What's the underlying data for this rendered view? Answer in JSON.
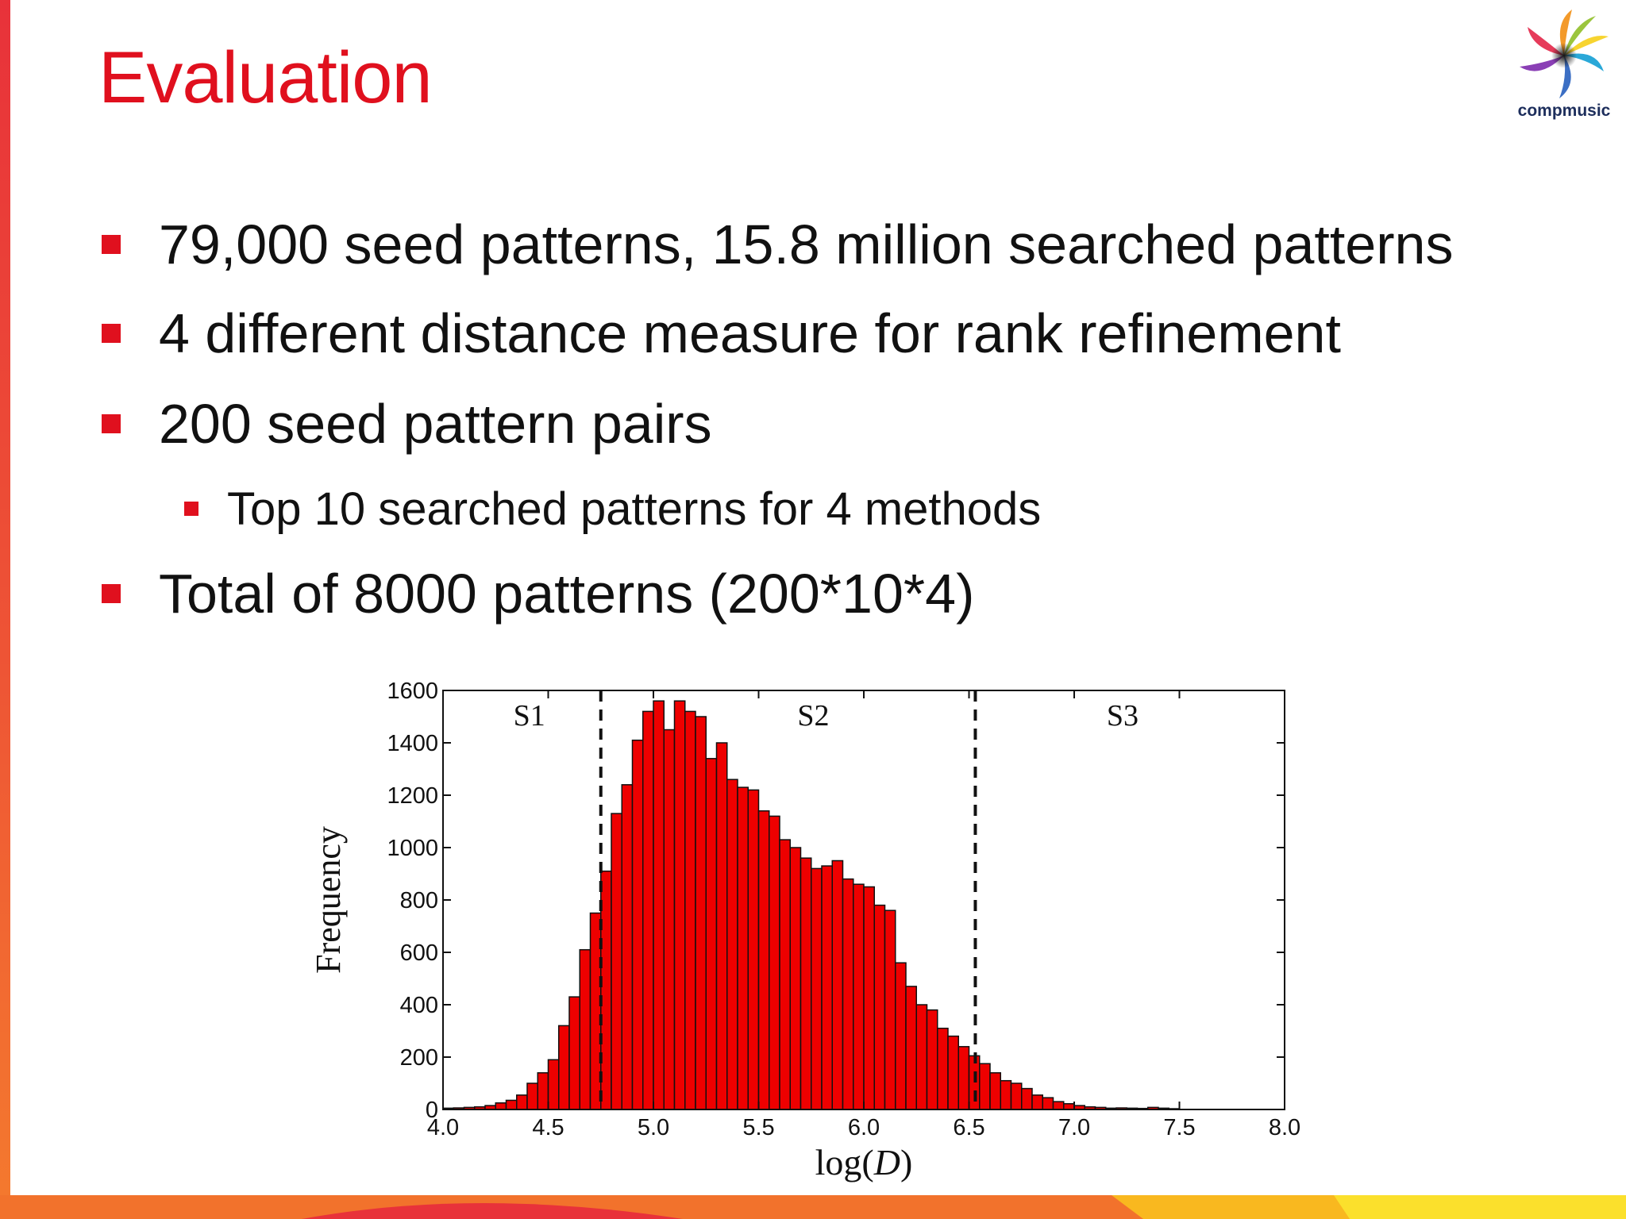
{
  "slide": {
    "title": "Evaluation",
    "logo_text": "compmusic",
    "bullets": [
      {
        "text": "79,000 seed patterns, 15.8 million searched patterns"
      },
      {
        "text": "4 different distance measure for rank refinement"
      },
      {
        "text": "200 seed pattern pairs",
        "sub": [
          "Top 10 searched patterns for 4 methods"
        ]
      },
      {
        "text": "Total of 8000 patterns (200*10*4)"
      }
    ],
    "colors": {
      "accent": "#e0101e",
      "bar_fill": "#ee0000",
      "text": "#111111"
    }
  },
  "chart_data": {
    "type": "bar",
    "histogram": true,
    "xlabel": "log(D)",
    "ylabel": "Frequency",
    "xlim": [
      4.0,
      8.0
    ],
    "ylim": [
      0,
      1600
    ],
    "xticks": [
      "4.0",
      "4.5",
      "5.0",
      "5.5",
      "6.0",
      "6.5",
      "7.0",
      "7.5",
      "8.0"
    ],
    "yticks": [
      "0",
      "200",
      "400",
      "600",
      "800",
      "1000",
      "1200",
      "1400",
      "1600"
    ],
    "bin_start": 4.0,
    "bin_width": 0.05,
    "values": [
      5,
      6,
      8,
      10,
      15,
      25,
      35,
      55,
      100,
      140,
      190,
      320,
      430,
      610,
      750,
      910,
      1130,
      1240,
      1410,
      1520,
      1560,
      1450,
      1560,
      1520,
      1500,
      1340,
      1400,
      1260,
      1230,
      1220,
      1140,
      1120,
      1030,
      1000,
      960,
      920,
      930,
      950,
      880,
      860,
      850,
      780,
      760,
      560,
      470,
      400,
      380,
      310,
      280,
      240,
      205,
      175,
      140,
      110,
      100,
      80,
      55,
      45,
      30,
      22,
      15,
      10,
      8,
      5,
      6,
      5,
      4,
      8,
      5,
      3
    ],
    "region_lines": [
      4.75,
      6.53
    ],
    "region_labels": [
      {
        "label": "S1",
        "x": 4.41
      },
      {
        "label": "S2",
        "x": 5.76
      },
      {
        "label": "S3",
        "x": 7.23
      }
    ],
    "line_style": "dashed",
    "grid": false
  }
}
